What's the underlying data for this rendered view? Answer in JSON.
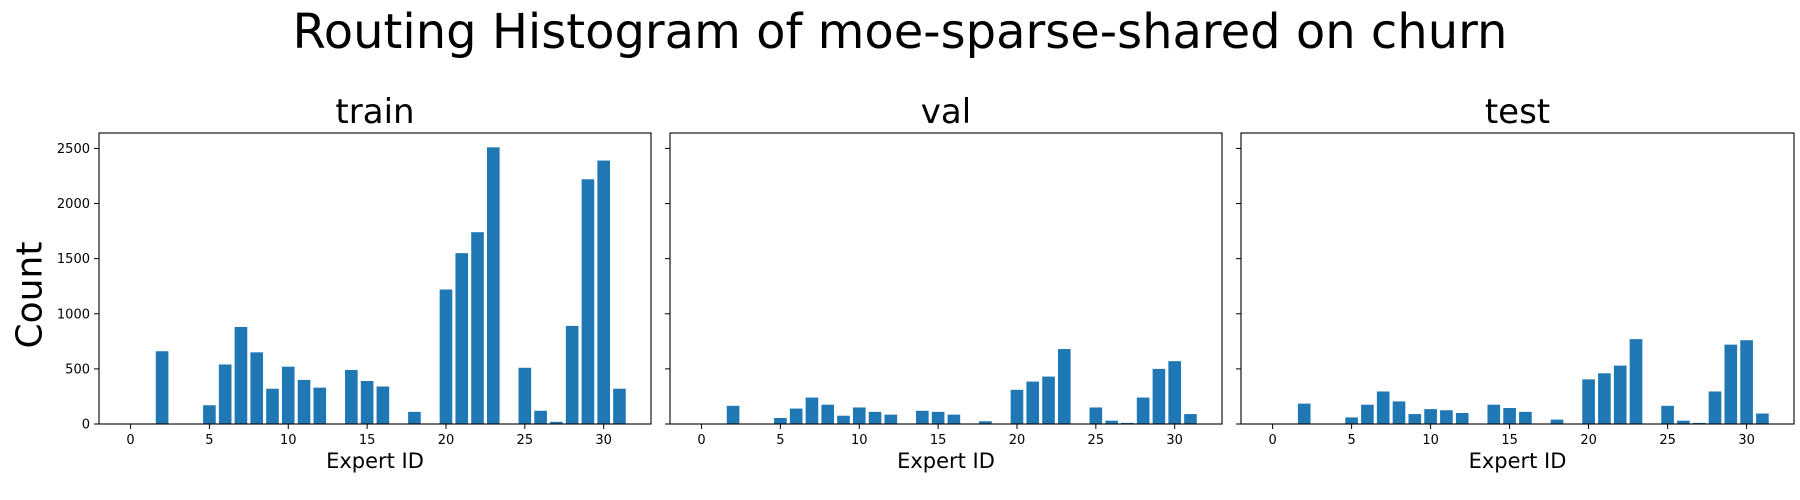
{
  "suptitle": "Routing Histogram of moe-sparse-shared on churn",
  "ylabel": "Count",
  "chart_data": [
    {
      "type": "bar",
      "title": "train",
      "xlabel": "Expert ID",
      "ylabel": "Count",
      "xlim": [
        -2,
        33
      ],
      "ylim": [
        0,
        2640
      ],
      "xticks": [
        0,
        5,
        10,
        15,
        20,
        25,
        30
      ],
      "yticks": [
        0,
        500,
        1000,
        1500,
        2000,
        2500
      ],
      "bar_color": "#1f77b4",
      "x": [
        2,
        5,
        6,
        7,
        8,
        9,
        10,
        11,
        12,
        14,
        15,
        16,
        18,
        20,
        21,
        22,
        23,
        25,
        26,
        27,
        28,
        29,
        30,
        31
      ],
      "values": [
        660,
        170,
        540,
        880,
        650,
        320,
        520,
        400,
        330,
        490,
        390,
        340,
        110,
        1220,
        1550,
        1740,
        2510,
        510,
        120,
        20,
        890,
        2220,
        2390,
        320
      ]
    },
    {
      "type": "bar",
      "title": "val",
      "xlabel": "Expert ID",
      "ylabel": "",
      "xlim": [
        -2,
        33
      ],
      "ylim": [
        0,
        2640
      ],
      "xticks": [
        0,
        5,
        10,
        15,
        20,
        25,
        30
      ],
      "yticks": [
        0,
        500,
        1000,
        1500,
        2000,
        2500
      ],
      "bar_color": "#1f77b4",
      "x": [
        2,
        5,
        6,
        7,
        8,
        9,
        10,
        11,
        12,
        14,
        15,
        16,
        18,
        20,
        21,
        22,
        23,
        25,
        26,
        27,
        28,
        29,
        30,
        31
      ],
      "values": [
        165,
        55,
        140,
        240,
        175,
        75,
        150,
        110,
        85,
        120,
        110,
        85,
        25,
        310,
        385,
        430,
        680,
        150,
        30,
        10,
        240,
        500,
        570,
        90
      ]
    },
    {
      "type": "bar",
      "title": "test",
      "xlabel": "Expert ID",
      "ylabel": "",
      "xlim": [
        -2,
        33
      ],
      "ylim": [
        0,
        2640
      ],
      "xticks": [
        0,
        5,
        10,
        15,
        20,
        25,
        30
      ],
      "yticks": [
        0,
        500,
        1000,
        1500,
        2000,
        2500
      ],
      "bar_color": "#1f77b4",
      "x": [
        2,
        5,
        6,
        7,
        8,
        9,
        10,
        11,
        12,
        14,
        15,
        16,
        18,
        20,
        21,
        22,
        23,
        25,
        26,
        27,
        28,
        29,
        30,
        31
      ],
      "values": [
        185,
        60,
        175,
        295,
        205,
        90,
        135,
        125,
        100,
        175,
        145,
        110,
        40,
        405,
        460,
        530,
        770,
        165,
        30,
        10,
        295,
        720,
        760,
        95
      ]
    }
  ]
}
